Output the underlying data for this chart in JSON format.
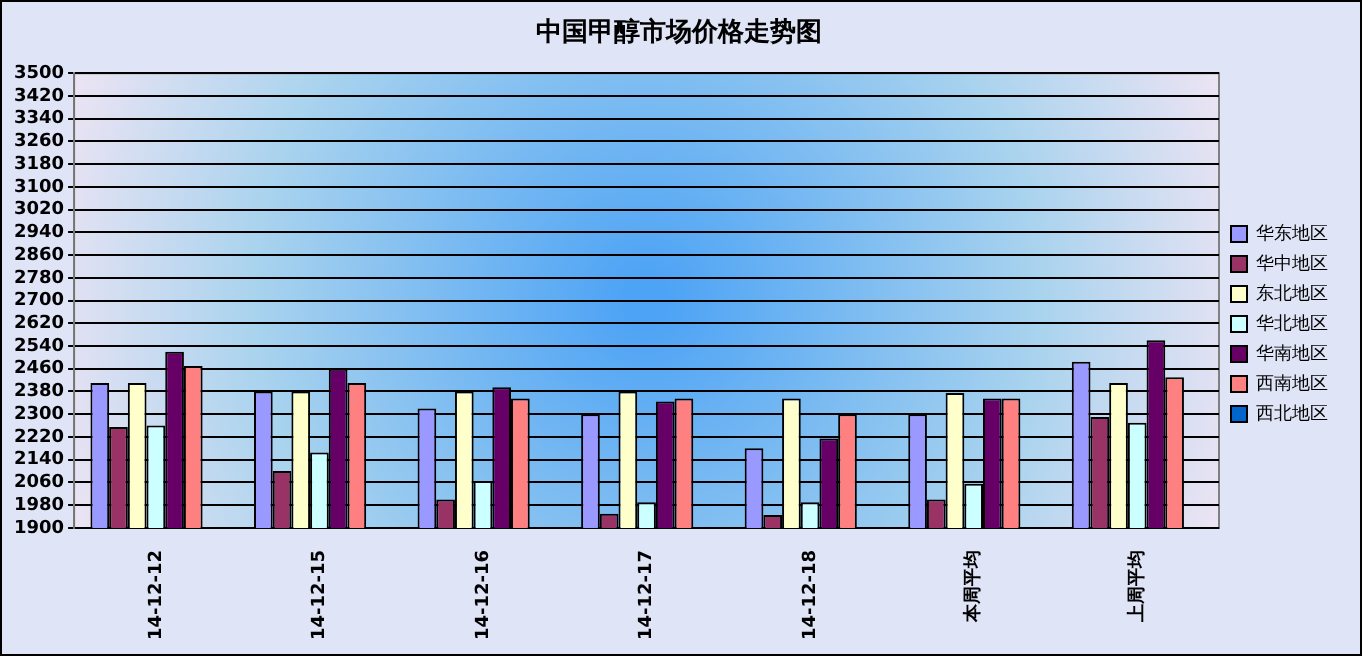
{
  "chart_data": {
    "type": "bar",
    "title": "中国甲醇市场价格走势图",
    "categories": [
      "14-12-12",
      "14-12-15",
      "14-12-16",
      "14-12-17",
      "14-12-18",
      "本周平均",
      "上周平均"
    ],
    "series": [
      {
        "name": "华东地区",
        "color": "#9999ff",
        "values": [
          2410,
          2380,
          2320,
          2300,
          2180,
          2300,
          2485
        ]
      },
      {
        "name": "华中地区",
        "color": "#993366",
        "values": [
          2255,
          2100,
          2000,
          1950,
          1945,
          2000,
          2290
        ]
      },
      {
        "name": "东北地区",
        "color": "#ffffcc",
        "values": [
          2410,
          2380,
          2380,
          2380,
          2355,
          2375,
          2410
        ]
      },
      {
        "name": "华北地区",
        "color": "#ccffff",
        "values": [
          2260,
          2165,
          2065,
          1990,
          1990,
          2055,
          2270
        ]
      },
      {
        "name": "华南地区",
        "color": "#660066",
        "values": [
          2520,
          2460,
          2395,
          2345,
          2215,
          2355,
          2560
        ]
      },
      {
        "name": "西南地区",
        "color": "#ff8080",
        "values": [
          2470,
          2410,
          2355,
          2355,
          2300,
          2355,
          2430
        ]
      },
      {
        "name": "西北地区",
        "color": "#0066cc",
        "values": [
          null,
          null,
          null,
          null,
          null,
          null,
          null
        ]
      }
    ],
    "ylim": [
      1900,
      3500
    ],
    "yticks": [
      1900,
      1980,
      2060,
      2140,
      2220,
      2300,
      2380,
      2460,
      2540,
      2620,
      2700,
      2780,
      2860,
      2940,
      3020,
      3100,
      3180,
      3260,
      3340,
      3420,
      3500
    ],
    "grid": "y",
    "legend": "right"
  }
}
